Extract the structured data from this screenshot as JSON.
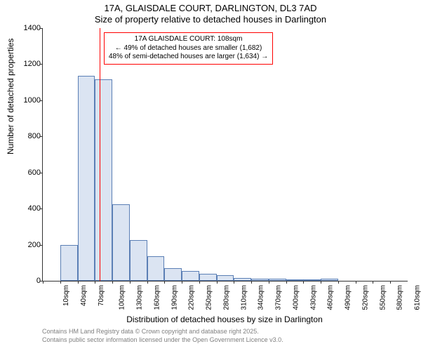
{
  "title_main": "17A, GLAISDALE COURT, DARLINGTON, DL3 7AD",
  "title_sub": "Size of property relative to detached houses in Darlington",
  "ylabel": "Number of detached properties",
  "xlabel": "Distribution of detached houses by size in Darlington",
  "footer1": "Contains HM Land Registry data © Crown copyright and database right 2025.",
  "footer2": "Contains public sector information licensed under the Open Government Licence v3.0.",
  "chart": {
    "type": "histogram",
    "ylim": [
      0,
      1400
    ],
    "ytick_step": 200,
    "yticks": [
      0,
      200,
      400,
      600,
      800,
      1000,
      1200,
      1400
    ],
    "xticks": [
      "10sqm",
      "40sqm",
      "70sqm",
      "100sqm",
      "130sqm",
      "160sqm",
      "190sqm",
      "220sqm",
      "250sqm",
      "280sqm",
      "310sqm",
      "340sqm",
      "370sqm",
      "400sqm",
      "430sqm",
      "460sqm",
      "490sqm",
      "520sqm",
      "550sqm",
      "580sqm",
      "610sqm"
    ],
    "bar_fill": "#dbe4f2",
    "bar_border": "#5b7fb5",
    "background_color": "#ffffff",
    "axis_color": "#333333",
    "text_color": "#000000",
    "footer_color": "#808080",
    "marker_color": "#ff0000",
    "annotation_border": "#ff0000",
    "values": [
      0,
      200,
      1135,
      1115,
      425,
      225,
      135,
      70,
      55,
      40,
      30,
      15,
      10,
      10,
      5,
      5,
      10,
      0,
      0,
      0,
      0
    ],
    "marker_position": 108,
    "x_min": 10,
    "x_max": 640,
    "bar_width_sqm": 30
  },
  "annotation": {
    "line1": "17A GLAISDALE COURT: 108sqm",
    "line2": "← 49% of detached houses are smaller (1,682)",
    "line3": "48% of semi-detached houses are larger (1,634) →"
  }
}
